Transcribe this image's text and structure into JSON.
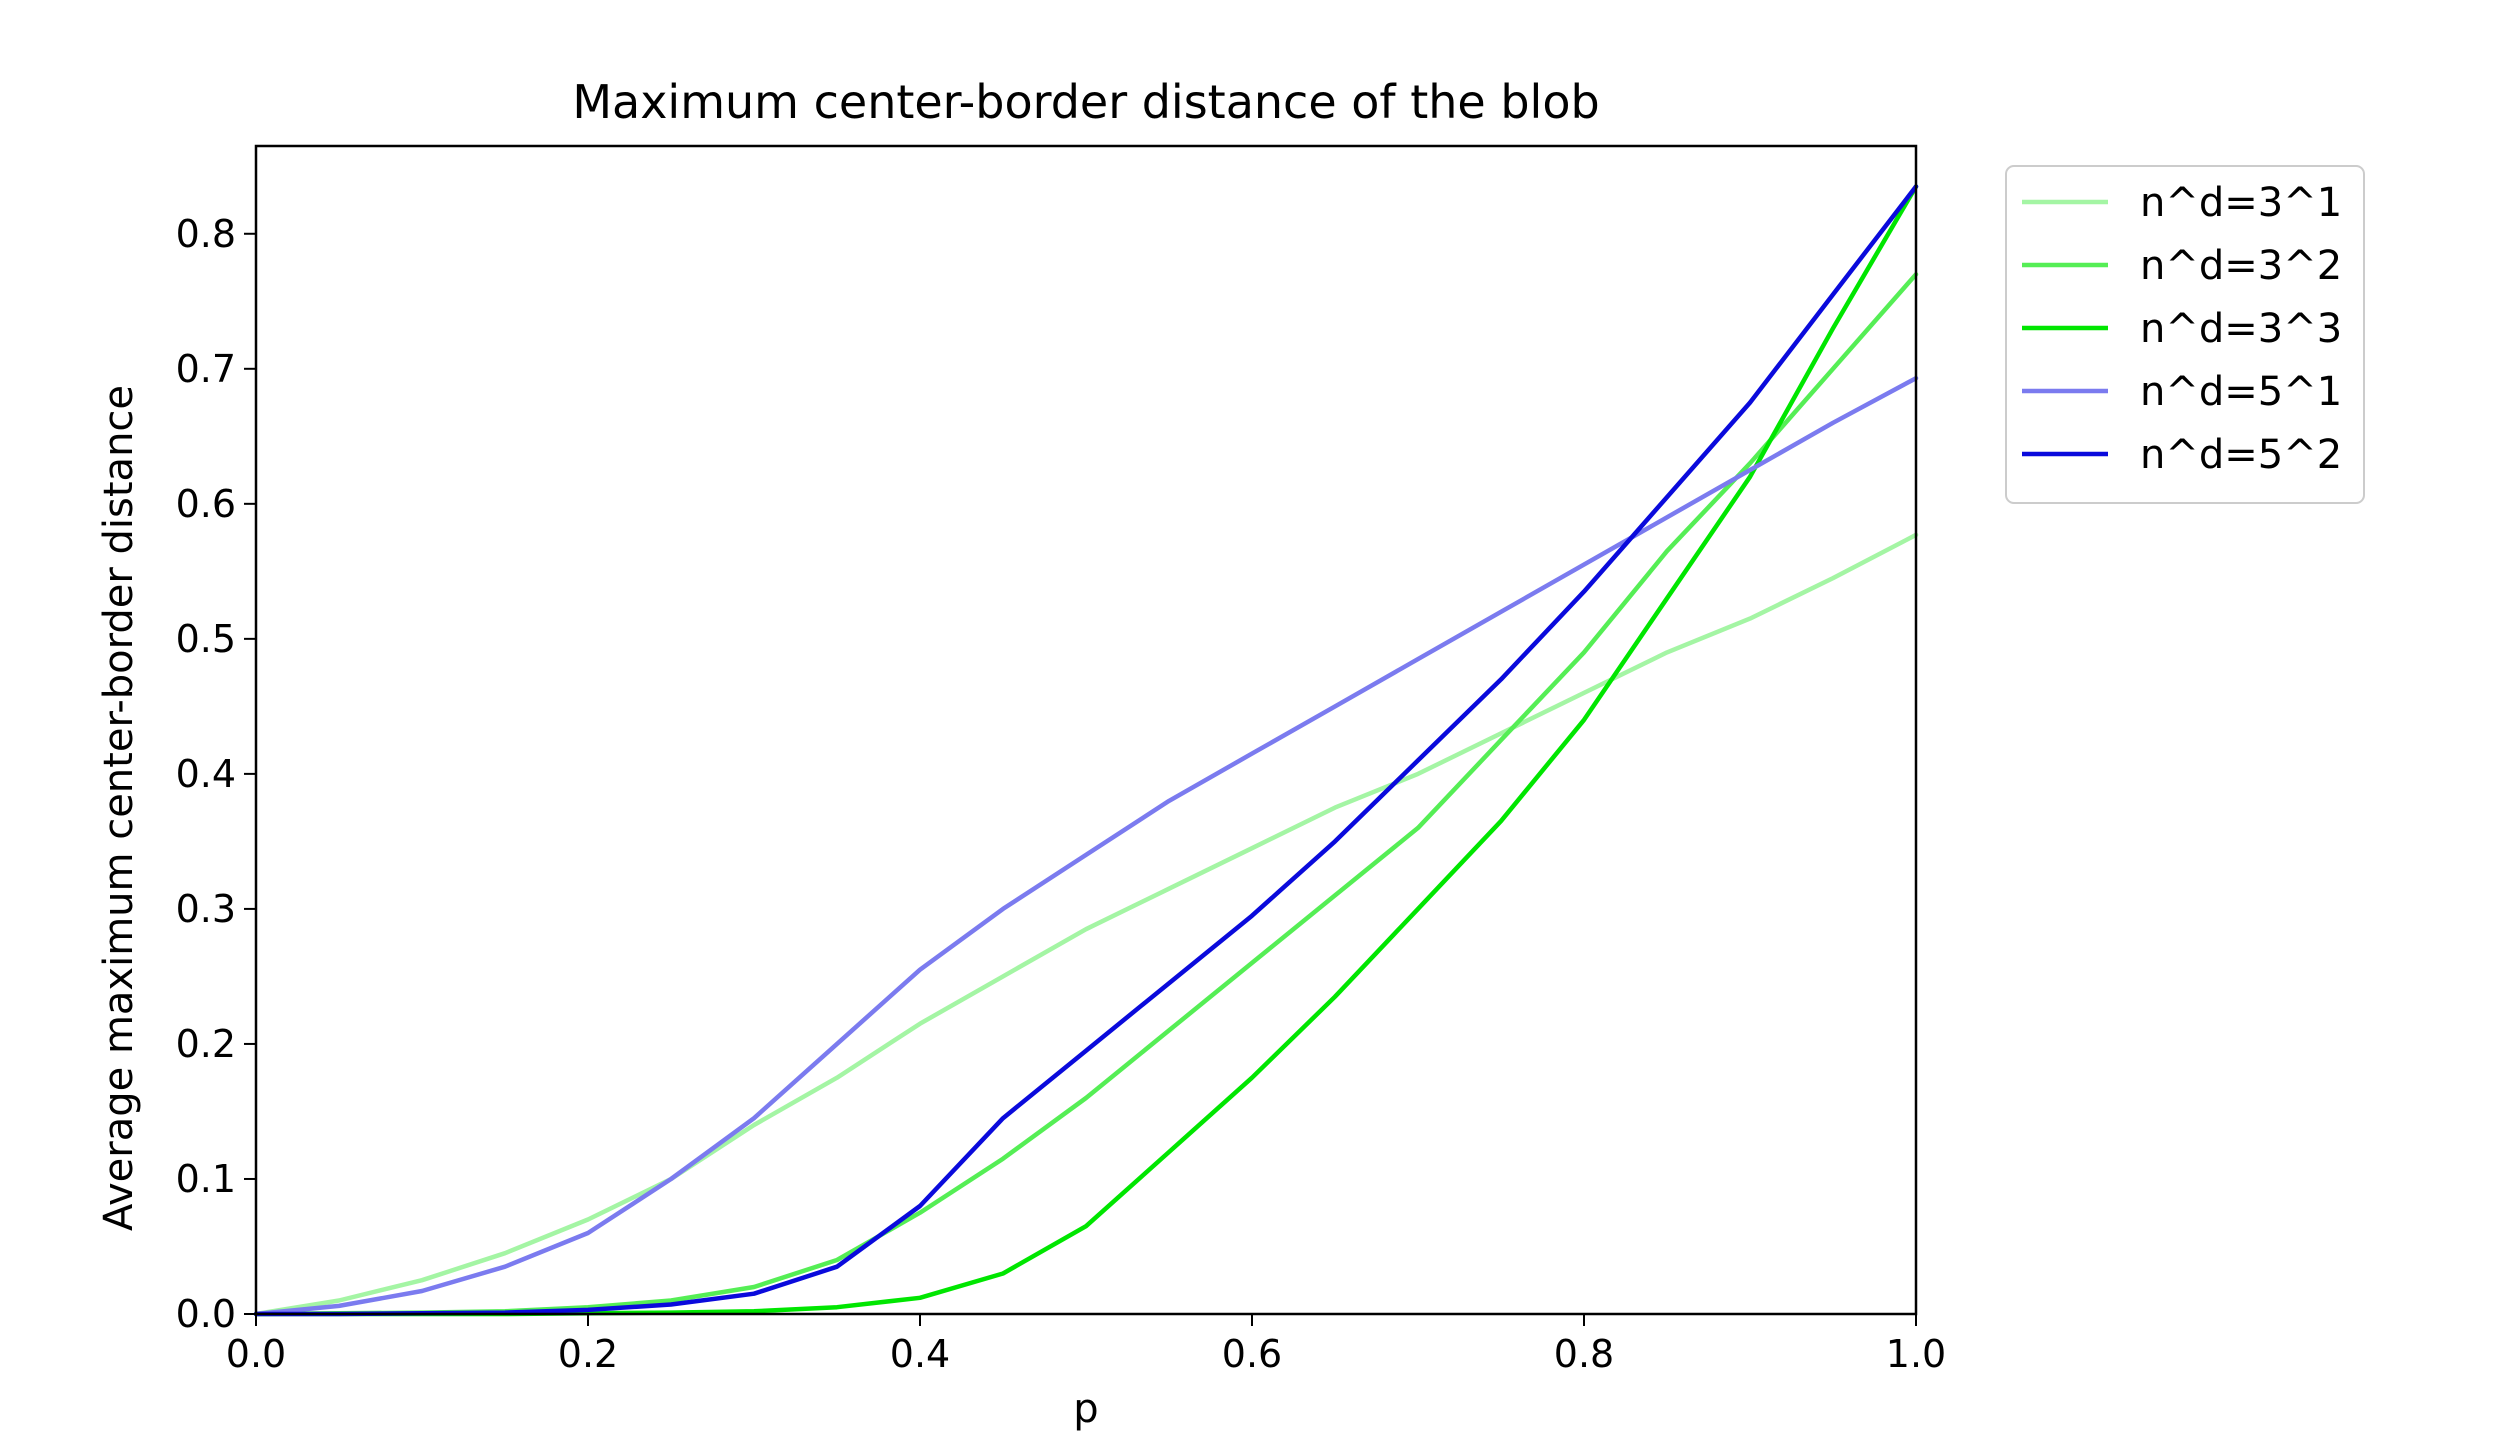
{
  "chart_data": {
    "type": "line",
    "title": "Maximum center-border distance of the blob",
    "xlabel": "p",
    "ylabel": "Average maximum center-border distance",
    "xlim": [
      0.0,
      1.0
    ],
    "ylim": [
      0.0,
      0.865
    ],
    "xticks": [
      0.0,
      0.2,
      0.4,
      0.6,
      0.8,
      1.0
    ],
    "xtick_labels": [
      "0.0",
      "0.2",
      "0.4",
      "0.6",
      "0.8",
      "1.0"
    ],
    "yticks": [
      0.0,
      0.1,
      0.2,
      0.3,
      0.4,
      0.5,
      0.6,
      0.7,
      0.8
    ],
    "ytick_labels": [
      "0.0",
      "0.1",
      "0.2",
      "0.3",
      "0.4",
      "0.5",
      "0.6",
      "0.7",
      "0.8"
    ],
    "grid": false,
    "legend_position": "outside-top-right",
    "x": [
      0.0,
      0.05,
      0.1,
      0.15,
      0.2,
      0.25,
      0.3,
      0.35,
      0.4,
      0.45,
      0.5,
      0.55,
      0.6,
      0.65,
      0.7,
      0.75,
      0.8,
      0.85,
      0.9,
      0.95,
      1.0
    ],
    "series": [
      {
        "name": "n^d=3^1",
        "color": "#a4f5a4",
        "values": [
          0.0,
          0.01,
          0.025,
          0.045,
          0.07,
          0.1,
          0.14,
          0.175,
          0.215,
          0.25,
          0.285,
          0.315,
          0.345,
          0.375,
          0.4,
          0.43,
          0.46,
          0.49,
          0.515,
          0.545,
          0.577
        ]
      },
      {
        "name": "n^d=3^2",
        "color": "#55ee55",
        "values": [
          0.0,
          0.0005,
          0.001,
          0.002,
          0.005,
          0.01,
          0.02,
          0.04,
          0.075,
          0.115,
          0.16,
          0.21,
          0.26,
          0.31,
          0.36,
          0.425,
          0.49,
          0.565,
          0.63,
          0.7,
          0.77
        ]
      },
      {
        "name": "n^d=3^3",
        "color": "#00e600",
        "values": [
          0.0,
          0.0,
          0.0,
          0.0,
          0.0005,
          0.001,
          0.002,
          0.005,
          0.012,
          0.03,
          0.065,
          0.12,
          0.175,
          0.235,
          0.3,
          0.365,
          0.44,
          0.53,
          0.62,
          0.73,
          0.835
        ]
      },
      {
        "name": "n^d=5^1",
        "color": "#7b7bef",
        "values": [
          0.0,
          0.006,
          0.017,
          0.035,
          0.06,
          0.1,
          0.145,
          0.2,
          0.255,
          0.3,
          0.34,
          0.38,
          0.415,
          0.45,
          0.485,
          0.52,
          0.555,
          0.59,
          0.625,
          0.66,
          0.693
        ]
      },
      {
        "name": "n^d=5^2",
        "color": "#0a0adc",
        "values": [
          0.0,
          0.0,
          0.0005,
          0.001,
          0.003,
          0.007,
          0.015,
          0.035,
          0.08,
          0.145,
          0.195,
          0.245,
          0.295,
          0.35,
          0.41,
          0.47,
          0.535,
          0.605,
          0.675,
          0.755,
          0.835
        ]
      }
    ]
  }
}
